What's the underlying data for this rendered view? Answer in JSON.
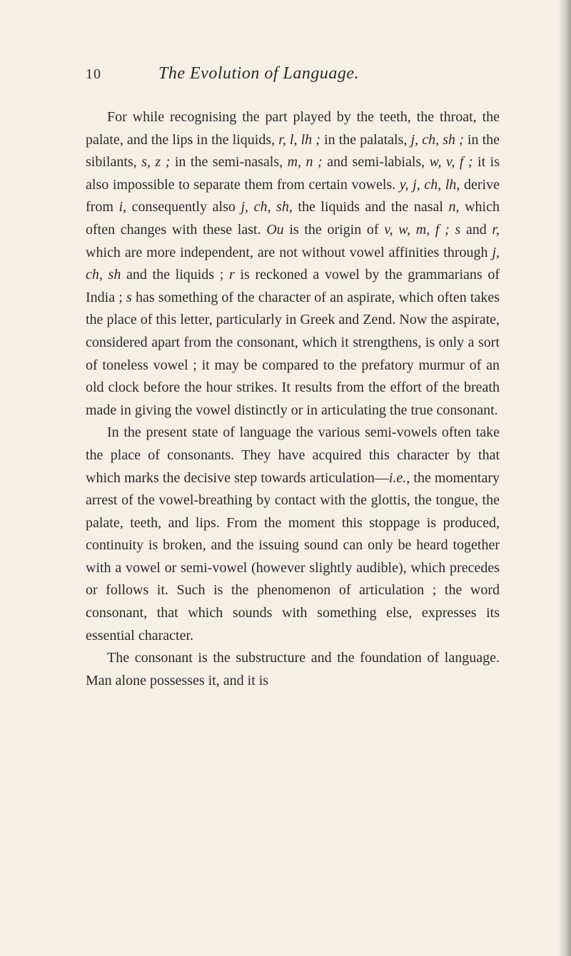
{
  "page": {
    "background_color": "#f5f0e6",
    "text_color": "#2a2a2a",
    "font_family": "Georgia, serif",
    "body_fontsize": 20,
    "line_height": 1.58,
    "header": {
      "page_number": "10",
      "running_title": "The Evolution of Language."
    },
    "paragraphs": [
      {
        "runs": [
          {
            "t": "For while recognising the part played by the teeth, the throat, the palate, and the lips in the liquids, ",
            "i": false
          },
          {
            "t": "r, l, lh ;",
            "i": true
          },
          {
            "t": " in the palatals, ",
            "i": false
          },
          {
            "t": "j, ch, sh ;",
            "i": true
          },
          {
            "t": " in the sibilants, ",
            "i": false
          },
          {
            "t": "s, z ;",
            "i": true
          },
          {
            "t": " in the semi-nasals, ",
            "i": false
          },
          {
            "t": "m, n ;",
            "i": true
          },
          {
            "t": " and semi-labials, ",
            "i": false
          },
          {
            "t": "w, v, f ;",
            "i": true
          },
          {
            "t": " it is also impossible to separate them from certain vowels. ",
            "i": false
          },
          {
            "t": "y, j, ch, lh,",
            "i": true
          },
          {
            "t": " derive from ",
            "i": false
          },
          {
            "t": "i,",
            "i": true
          },
          {
            "t": " conse­quently also ",
            "i": false
          },
          {
            "t": "j, ch, sh,",
            "i": true
          },
          {
            "t": " the liquids and the nasal ",
            "i": false
          },
          {
            "t": "n,",
            "i": true
          },
          {
            "t": " which often changes with these last. ",
            "i": false
          },
          {
            "t": "Ou",
            "i": true
          },
          {
            "t": " is the origin of ",
            "i": false
          },
          {
            "t": "v, w, m, f ; s",
            "i": true
          },
          {
            "t": " and ",
            "i": false
          },
          {
            "t": "r,",
            "i": true
          },
          {
            "t": " which are more independent, are not without vowel affinities through ",
            "i": false
          },
          {
            "t": "j, ch, sh",
            "i": true
          },
          {
            "t": " and the liquids ; ",
            "i": false
          },
          {
            "t": "r",
            "i": true
          },
          {
            "t": " is reckoned a vowel by the grammarians of India ; ",
            "i": false
          },
          {
            "t": "s",
            "i": true
          },
          {
            "t": " has something of the character of an aspirate, which often takes the place of this letter, particularly in Greek and Zend. Now the aspirate, considered apart from the consonant, which it streng­thens, is only a sort of toneless vowel ; it may be compared to the prefatory murmur of an old clock before the hour strikes. It results from the effort of the breath made in giving the vowel distinctly or in articulating the true consonant.",
            "i": false
          }
        ]
      },
      {
        "runs": [
          {
            "t": "In the present state of language the various semi-vowels often take the place of consonants. They have acquired this character by that which marks the decisive step towards articulation—",
            "i": false
          },
          {
            "t": "i.e.",
            "i": true
          },
          {
            "t": ", the momentary arrest of the vowel-breathing by contact with the glottis, the tongue, the palate, teeth, and lips. From the moment this stoppage is produced, continuity is broken, and the issuing sound can only be heard together with a vowel or semi-vowel (however slightly audible), which precedes or follows it. Such is the phenomenon of articulation ; the word consonant, that which sounds with something else, expresses its essential character.",
            "i": false
          }
        ]
      },
      {
        "runs": [
          {
            "t": "The consonant is the substructure and the founda­tion of language. Man alone possesses it, and it is",
            "i": false
          }
        ]
      }
    ]
  }
}
